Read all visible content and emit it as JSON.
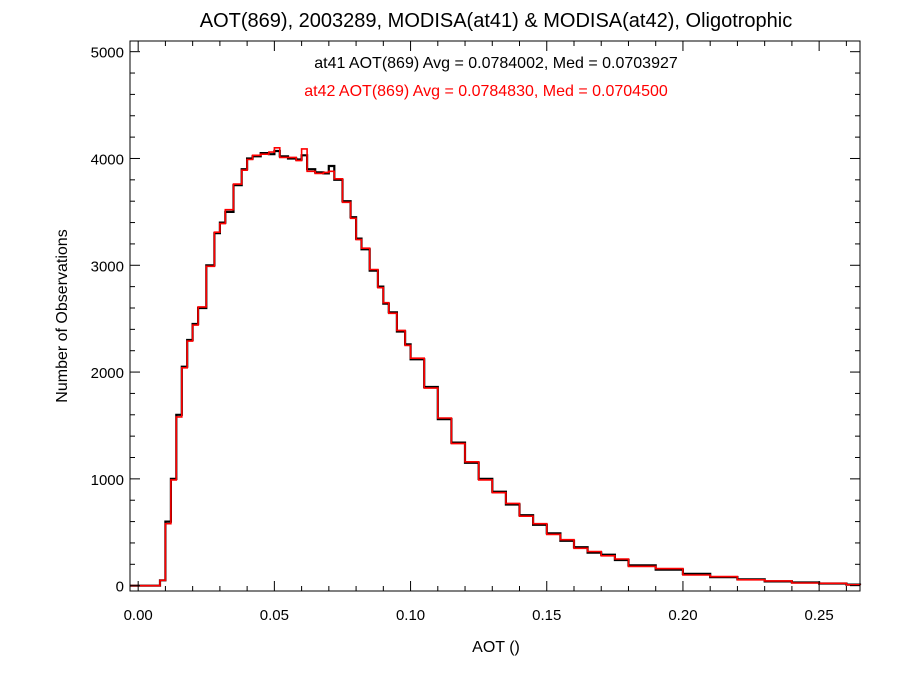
{
  "chart_data": {
    "type": "line",
    "title": "AOT(869), 2003289, MODISA(at41) & MODISA(at42), Oligotrophic",
    "xlabel": "AOT ()",
    "ylabel": "Number of Observations",
    "xlim": [
      -0.003,
      0.265
    ],
    "ylim": [
      -50,
      5100
    ],
    "x_ticks": [
      0.0,
      0.05,
      0.1,
      0.15,
      0.2,
      0.25
    ],
    "x_tick_labels": [
      "0.00",
      "0.05",
      "0.10",
      "0.15",
      "0.20",
      "0.25"
    ],
    "y_ticks": [
      0,
      1000,
      2000,
      3000,
      4000,
      5000
    ],
    "y_tick_labels": [
      "0",
      "1000",
      "2000",
      "3000",
      "4000",
      "5000"
    ],
    "grid": false,
    "annotations": [
      {
        "text": "at41 AOT(869) Avg = 0.0784002, Med = 0.0703927",
        "color": "#000000"
      },
      {
        "text": "at42 AOT(869) Avg = 0.0784830, Med = 0.0704500",
        "color": "#ff0000"
      }
    ],
    "series": [
      {
        "color": "#000000",
        "x": [
          -0.003,
          0.0,
          0.005,
          0.008,
          0.01,
          0.012,
          0.014,
          0.016,
          0.018,
          0.02,
          0.022,
          0.025,
          0.028,
          0.03,
          0.032,
          0.035,
          0.038,
          0.04,
          0.042,
          0.045,
          0.048,
          0.05,
          0.052,
          0.055,
          0.058,
          0.06,
          0.062,
          0.065,
          0.068,
          0.07,
          0.072,
          0.075,
          0.078,
          0.08,
          0.082,
          0.085,
          0.088,
          0.09,
          0.092,
          0.095,
          0.098,
          0.1,
          0.105,
          0.11,
          0.115,
          0.12,
          0.125,
          0.13,
          0.135,
          0.14,
          0.145,
          0.15,
          0.155,
          0.16,
          0.165,
          0.17,
          0.175,
          0.18,
          0.19,
          0.2,
          0.21,
          0.22,
          0.23,
          0.24,
          0.25,
          0.26,
          0.265
        ],
        "values": [
          0,
          0,
          0,
          50,
          600,
          1000,
          1600,
          2050,
          2300,
          2450,
          2600,
          3000,
          3300,
          3400,
          3500,
          3750,
          3900,
          4000,
          4020,
          4050,
          4040,
          4070,
          4020,
          4000,
          3990,
          4030,
          3900,
          3870,
          3860,
          3930,
          3800,
          3600,
          3450,
          3250,
          3150,
          2950,
          2800,
          2640,
          2560,
          2380,
          2260,
          2120,
          1860,
          1560,
          1340,
          1150,
          1000,
          880,
          760,
          660,
          570,
          490,
          420,
          360,
          310,
          290,
          240,
          190,
          150,
          110,
          80,
          60,
          40,
          30,
          20,
          10,
          5
        ]
      },
      {
        "color": "#ff0000",
        "x": [
          -0.003,
          0.0,
          0.005,
          0.008,
          0.01,
          0.012,
          0.014,
          0.016,
          0.018,
          0.02,
          0.022,
          0.025,
          0.028,
          0.03,
          0.032,
          0.035,
          0.038,
          0.04,
          0.042,
          0.045,
          0.048,
          0.05,
          0.052,
          0.055,
          0.058,
          0.06,
          0.062,
          0.065,
          0.068,
          0.07,
          0.072,
          0.075,
          0.078,
          0.08,
          0.082,
          0.085,
          0.088,
          0.09,
          0.092,
          0.095,
          0.098,
          0.1,
          0.105,
          0.11,
          0.115,
          0.12,
          0.125,
          0.13,
          0.135,
          0.14,
          0.145,
          0.15,
          0.155,
          0.16,
          0.165,
          0.17,
          0.175,
          0.18,
          0.19,
          0.2,
          0.21,
          0.22,
          0.23,
          0.24,
          0.25,
          0.26,
          0.265
        ],
        "values": [
          0,
          0,
          0,
          50,
          580,
          990,
          1580,
          2040,
          2290,
          2440,
          2610,
          2990,
          3310,
          3390,
          3520,
          3760,
          3890,
          3990,
          4030,
          4040,
          4060,
          4100,
          4010,
          4010,
          3980,
          4090,
          3880,
          3860,
          3870,
          3880,
          3810,
          3590,
          3440,
          3240,
          3160,
          2960,
          2790,
          2650,
          2550,
          2390,
          2250,
          2130,
          1850,
          1570,
          1330,
          1160,
          990,
          870,
          770,
          650,
          580,
          480,
          430,
          350,
          320,
          280,
          250,
          180,
          160,
          100,
          85,
          55,
          45,
          25,
          22,
          8,
          5
        ]
      }
    ]
  }
}
